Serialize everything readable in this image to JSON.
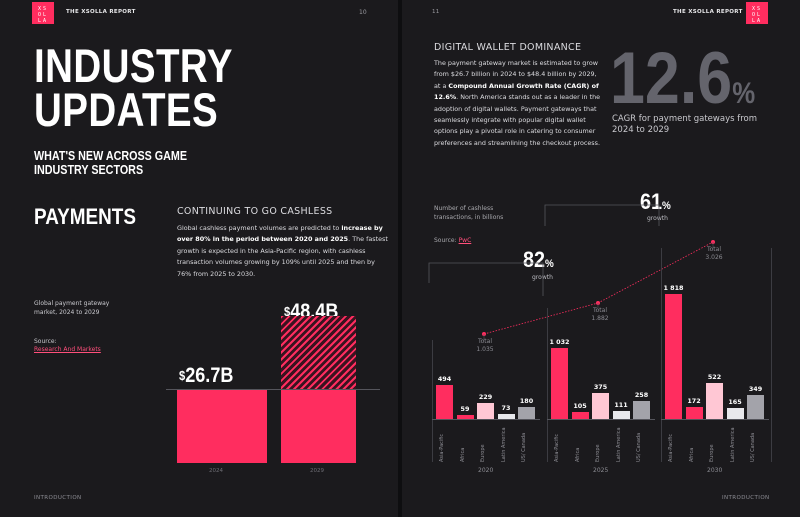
{
  "left_page": {
    "logo": "XSOLLA",
    "running_head": "THE XSOLLA REPORT",
    "page_number": "10",
    "title_line1": "INDUSTRY",
    "title_line2": "UPDATES",
    "subtitle": "WHAT'S NEW ACROSS GAME INDUSTRY SECTORS",
    "section_title": "PAYMENTS",
    "subsection_title": "CONTINUING TO GO CASHLESS",
    "body_before": "Global cashless payment volumes are predicted to ",
    "body_bold": "increase by over 80% in the period between 2020 and 2025",
    "body_after": ". The fastest growth is expected in the Asia-Pacific region, with cashless transaction volumes growing by 109% until 2025 and then by 76% from 2025 to 2030.",
    "chart_caption": "Global payment gateway market, 2024 to 2029",
    "source_label": "Source:",
    "source_link": "Research And Markets",
    "footer": "INTRODUCTION"
  },
  "right_page": {
    "logo": "XSOLLA",
    "running_head": "THE XSOLLA REPORT",
    "page_number": "11",
    "subsection_title": "DIGITAL WALLET DOMINANCE",
    "body_1": "The payment gateway market is estimated to grow from $26.7 billion in 2024 to $48.4 billion by 2029, at a ",
    "body_bold": "Compound Annual Growth Rate (CAGR) of 12.6%",
    "body_2": ". North America stands out as a leader in the adoption  of digital wallets. Payment gateways that seamlessly integrate with popular digital wallet options play a pivotal role in catering to consumer preferences and streamlining the checkout process.",
    "cagr_value": "12.6",
    "cagr_unit": "%",
    "cagr_caption": "CAGR for payment gateways from 2024 to 2029",
    "chart_caption": "Number of cashless transactions, in billions",
    "source_label": "Source:",
    "source_link": "PwC",
    "growth_1_value": "82",
    "growth_1_unit": "%",
    "growth_1_label": "growth",
    "growth_2_value": "61",
    "growth_2_unit": "%",
    "growth_2_label": "growth",
    "footer": "INTRODUCTION"
  },
  "colors": {
    "accent": "#ff2d5f",
    "light_pink": "#ffc7d4",
    "grey": "#a3a3aa",
    "light": "#e8e8ec"
  },
  "chart_data": [
    {
      "type": "bar",
      "title": "Global payment gateway market, 2024 to 2029",
      "categories": [
        "2024",
        "2029"
      ],
      "values": [
        26.7,
        48.4
      ],
      "value_labels": [
        "$26.7B",
        "$48.4B"
      ],
      "unit": "billion USD"
    },
    {
      "type": "bar",
      "title": "Number of cashless transactions, in billions",
      "groups": [
        "2020",
        "2025",
        "2030"
      ],
      "categories": [
        "Asia-Pacific",
        "Africa",
        "Europe",
        "Latin America",
        "US/ Canada"
      ],
      "series": [
        {
          "name": "2020",
          "values": [
            494,
            59,
            229,
            73,
            180
          ],
          "total_label": "Total",
          "total": "1.035"
        },
        {
          "name": "2025",
          "values": [
            1032,
            105,
            375,
            111,
            258
          ],
          "total_label": "Total",
          "total": "1.882"
        },
        {
          "name": "2030",
          "values": [
            1818,
            172,
            522,
            165,
            349
          ],
          "total_label": "Total",
          "total": "3.026"
        }
      ],
      "value_labels": [
        [
          "494",
          "59",
          "229",
          "73",
          "180"
        ],
        [
          "1 032",
          "105",
          "375",
          "111",
          "258"
        ],
        [
          "1 818",
          "172",
          "522",
          "165",
          "349"
        ]
      ],
      "annotations": [
        "82% growth",
        "61% growth"
      ]
    }
  ]
}
